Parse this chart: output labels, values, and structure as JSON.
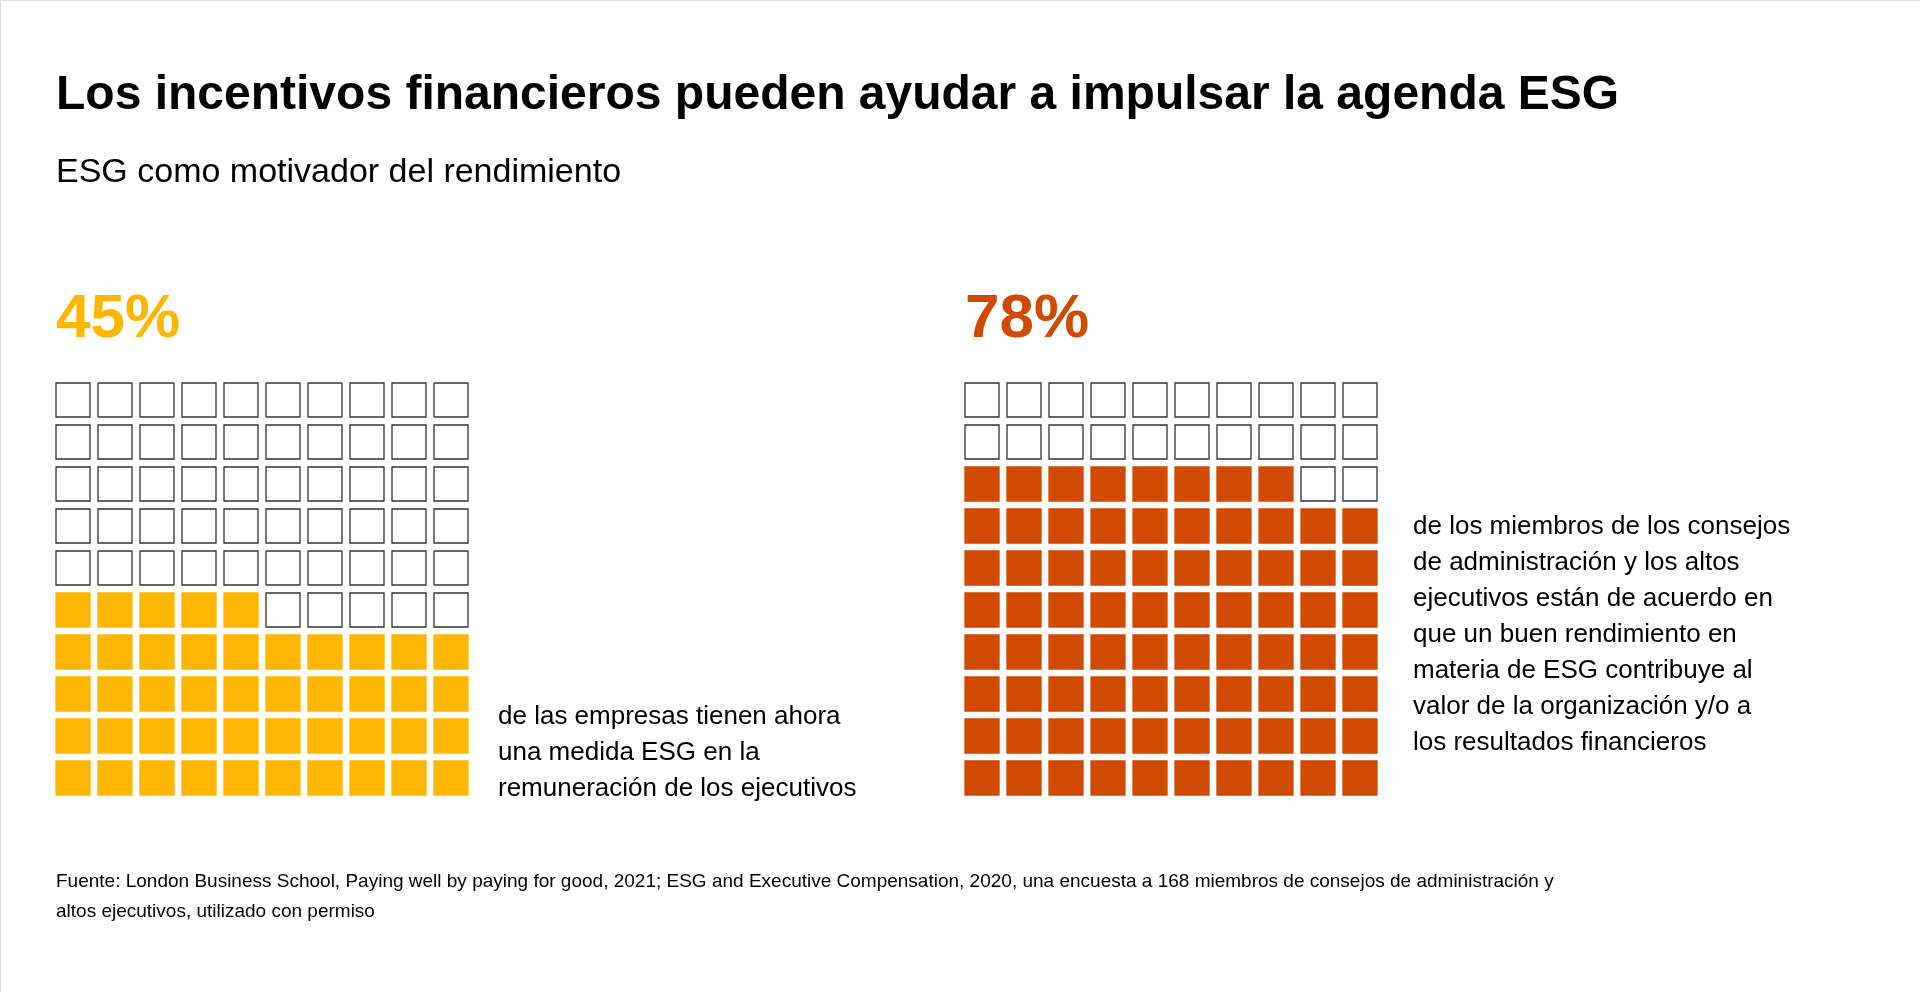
{
  "chart_data": {
    "type": "other",
    "title": "Los incentivos financieros pueden ayudar a impulsar la agenda ESG",
    "subtitle": "ESG como motivador del rendimiento",
    "categories": [
      null,
      null
    ],
    "values": [
      45,
      78
    ],
    "value_labels": [
      "45%",
      "78%"
    ],
    "colors": [
      "#ffb600",
      "#d04a02"
    ],
    "annotations": [
      "de las empresas tienen ahora una medida ESG en la remuneración de los ejecutivos",
      "de los miembros de los consejos de administración y los altos ejecutivos están de acuerdo en que un buen rendimiento en materia de ESG contribuye al valor de la organización y/o a los resultados financieros",
      "Fuente: London Business School, Paying well by paying for good, 2021; ESG and Executive Compensation, 2020, una encuesta a 168 miembros de consejos de administración y altos ejecutivos, utilizado con permiso"
    ]
  }
}
